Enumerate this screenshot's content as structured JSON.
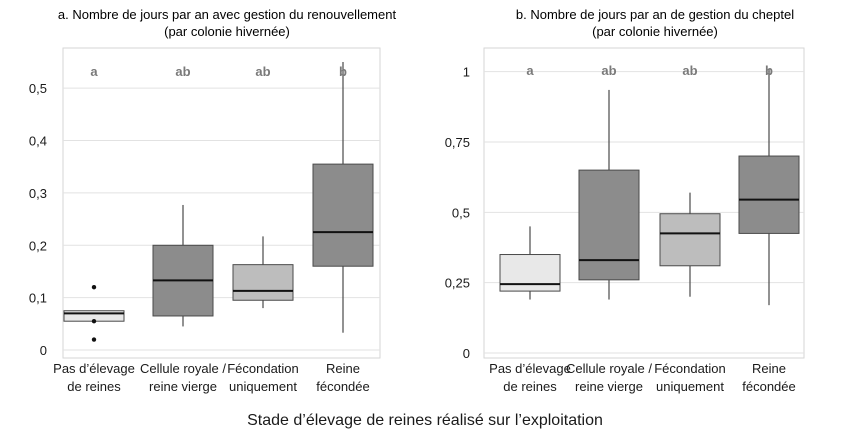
{
  "figure": {
    "x_axis_title": "Stade d’élevage de reines réalisé sur l’exploitation"
  },
  "colors": {
    "light_box": "#e8e8e8",
    "mid_box": "#bdbdbd",
    "dark_box": "#8c8c8c",
    "edge": "#4a4a4a",
    "letter": "#7a7a7a"
  },
  "chart_data": [
    {
      "type": "boxplot",
      "title_line1": "a. Nombre de jours par an avec gestion du renouvellement",
      "title_line2": "(par colonie hivernée)",
      "ylim": [
        0,
        0.55
      ],
      "yticks": [
        "0",
        "0,1",
        "0,2",
        "0,3",
        "0,4",
        "0,5"
      ],
      "ytick_values": [
        0,
        0.1,
        0.2,
        0.3,
        0.4,
        0.5
      ],
      "grid": true,
      "categories": [
        {
          "line1": "Pas d’élevage",
          "line2": "de reines"
        },
        {
          "line1": "Cellule royale /",
          "line2": "reine vierge"
        },
        {
          "line1": "Fécondation",
          "line2": "uniquement"
        },
        {
          "line1": "Reine",
          "line2": "fécondée"
        }
      ],
      "boxes": [
        {
          "min": 0.055,
          "q1": 0.055,
          "median": 0.07,
          "q3": 0.075,
          "max": 0.075,
          "outliers": [
            0.12,
            0.02,
            0.055
          ],
          "shade": "light_box",
          "letter": "a"
        },
        {
          "min": 0.045,
          "q1": 0.065,
          "median": 0.133,
          "q3": 0.2,
          "max": 0.277,
          "outliers": [],
          "shade": "dark_box",
          "letter": "ab"
        },
        {
          "min": 0.08,
          "q1": 0.095,
          "median": 0.113,
          "q3": 0.163,
          "max": 0.217,
          "outliers": [],
          "shade": "mid_box",
          "letter": "ab"
        },
        {
          "min": 0.033,
          "q1": 0.16,
          "median": 0.225,
          "q3": 0.355,
          "max": 0.55,
          "outliers": [],
          "shade": "dark_box",
          "letter": "b"
        }
      ]
    },
    {
      "type": "boxplot",
      "title_line1": "b. Nombre de jours par an de gestion du cheptel",
      "title_line2": "(par colonie hivernée)",
      "ylim": [
        0,
        1.02
      ],
      "yticks": [
        "0",
        "0,25",
        "0,5",
        "0,75",
        "1"
      ],
      "ytick_values": [
        0,
        0.25,
        0.5,
        0.75,
        1
      ],
      "grid": true,
      "categories": [
        {
          "line1": "Pas d’élevage",
          "line2": "de reines"
        },
        {
          "line1": "Cellule royale /",
          "line2": "reine vierge"
        },
        {
          "line1": "Fécondation",
          "line2": "uniquement"
        },
        {
          "line1": "Reine",
          "line2": "fécondée"
        }
      ],
      "boxes": [
        {
          "min": 0.19,
          "q1": 0.22,
          "median": 0.245,
          "q3": 0.35,
          "max": 0.45,
          "outliers": [],
          "shade": "light_box",
          "letter": "a"
        },
        {
          "min": 0.19,
          "q1": 0.26,
          "median": 0.33,
          "q3": 0.65,
          "max": 0.935,
          "outliers": [],
          "shade": "dark_box",
          "letter": "ab"
        },
        {
          "min": 0.2,
          "q1": 0.31,
          "median": 0.425,
          "q3": 0.495,
          "max": 0.57,
          "outliers": [],
          "shade": "mid_box",
          "letter": "ab"
        },
        {
          "min": 0.17,
          "q1": 0.425,
          "median": 0.545,
          "q3": 0.7,
          "max": 1.01,
          "outliers": [],
          "shade": "dark_box",
          "letter": "b"
        }
      ]
    }
  ]
}
